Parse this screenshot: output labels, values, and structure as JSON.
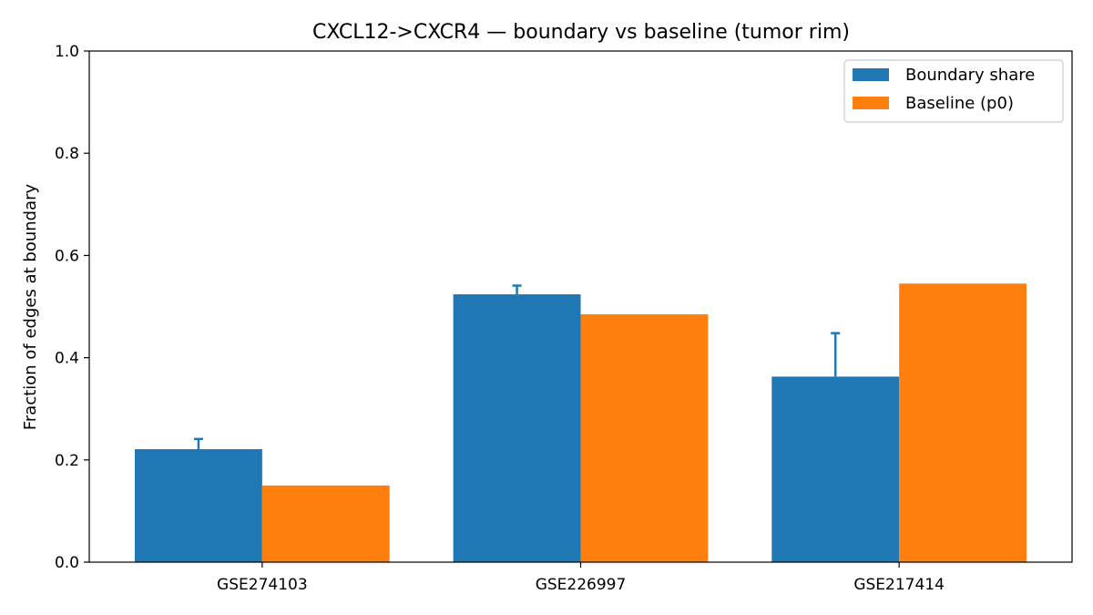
{
  "chart_data": {
    "type": "bar",
    "title": "CXCL12->CXCR4 — boundary vs baseline (tumor rim)",
    "xlabel": "",
    "ylabel": "Fraction of edges at boundary",
    "categories": [
      "GSE274103",
      "GSE226997",
      "GSE217414"
    ],
    "ylim": [
      0,
      1.0
    ],
    "yticks": [
      "0.0",
      "0.2",
      "0.4",
      "0.6",
      "0.8",
      "1.0"
    ],
    "grid": false,
    "legend_position": "top-right",
    "series": [
      {
        "name": "Boundary share",
        "color": "#1f77b4",
        "values": [
          0.221,
          0.524,
          0.363
        ],
        "error_upper": [
          0.02,
          0.017,
          0.085
        ]
      },
      {
        "name": "Baseline (p0)",
        "color": "#ff7f0e",
        "values": [
          0.15,
          0.485,
          0.545
        ]
      }
    ]
  }
}
